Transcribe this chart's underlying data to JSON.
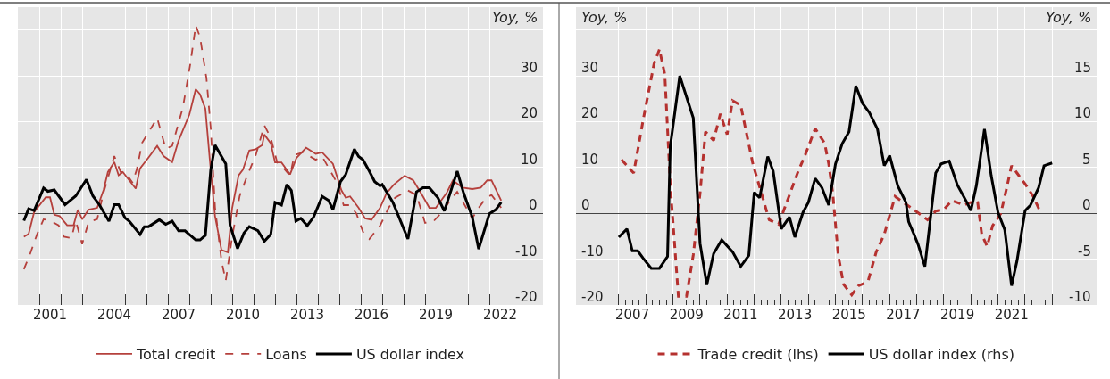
{
  "chart_data": [
    {
      "type": "line",
      "ylabel": "Yoy, %",
      "xlim": [
        2000,
        2024.5
      ],
      "ylim": [
        -20,
        45
      ],
      "xticks": [
        {
          "value": 2001,
          "label": null
        },
        {
          "value": 2002,
          "label": null
        },
        {
          "value": 2003,
          "label": null
        },
        {
          "value": 2004,
          "label": null
        },
        {
          "value": 2005,
          "label": null
        },
        {
          "value": 2006,
          "label": null
        },
        {
          "value": 2007,
          "label": null
        },
        {
          "value": 2008,
          "label": null
        },
        {
          "value": 2009,
          "label": null
        },
        {
          "value": 2010,
          "label": null
        },
        {
          "value": 2011,
          "label": null
        },
        {
          "value": 2012,
          "label": null
        },
        {
          "value": 2013,
          "label": null
        },
        {
          "value": 2014,
          "label": null
        },
        {
          "value": 2015,
          "label": null
        },
        {
          "value": 2016,
          "label": null
        },
        {
          "value": 2017,
          "label": null
        },
        {
          "value": 2018,
          "label": null
        },
        {
          "value": 2019,
          "label": null
        },
        {
          "value": 2020,
          "label": null
        },
        {
          "value": 2021,
          "label": null
        },
        {
          "value": 2022,
          "label": null
        },
        {
          "value": 2001.5,
          "label": "2001"
        },
        {
          "value": 2004.5,
          "label": "2004"
        },
        {
          "value": 2007.5,
          "label": "2007"
        },
        {
          "value": 2010.5,
          "label": "2010"
        },
        {
          "value": 2013.5,
          "label": "2013"
        },
        {
          "value": 2016.5,
          "label": "2016"
        },
        {
          "value": 2019.5,
          "label": "2019"
        },
        {
          "value": 2022.5,
          "label": "2022"
        }
      ],
      "yticks": [
        -20,
        -10,
        0,
        10,
        20,
        30,
        {
          "value": 40,
          "label": null
        }
      ],
      "grid": true,
      "legend": "bottom",
      "series": [
        {
          "name": "Total credit",
          "color": "#b5403c",
          "line_style": "solid",
          "x": [
            2000.28,
            2000.5,
            2000.76,
            2001.3,
            2001.5,
            2001.7,
            2001.95,
            2002.3,
            2002.6,
            2002.8,
            2003.0,
            2003.3,
            2003.7,
            2004.0,
            2004.2,
            2004.5,
            2004.7,
            2004.9,
            2005.5,
            2005.7,
            2006.1,
            2006.5,
            2006.8,
            2007.2,
            2007.5,
            2008.0,
            2008.3,
            2008.5,
            2008.75,
            2008.96,
            2009.2,
            2009.5,
            2009.8,
            2010.0,
            2010.3,
            2010.5,
            2010.8,
            2011.1,
            2011.4,
            2011.5,
            2011.8,
            2012.0,
            2012.3,
            2012.7,
            2013.0,
            2013.45,
            2013.9,
            2014.2,
            2014.7,
            2015.1,
            2015.3,
            2015.5,
            2015.9,
            2016.2,
            2016.5,
            2016.9,
            2017.2,
            2017.55,
            2018.05,
            2018.45,
            2018.9,
            2019.2,
            2019.5,
            2020.0,
            2020.3,
            2020.75,
            2021.2,
            2021.6,
            2021.9,
            2022.1,
            2022.55
          ],
          "values": [
            -5.1,
            -4.5,
            0.3,
            3.5,
            3.5,
            -0.3,
            -0.6,
            -2.6,
            -2.6,
            0.8,
            -1.3,
            0.8,
            1.2,
            5.1,
            9.0,
            11.2,
            8.3,
            9.0,
            5.4,
            9.8,
            12.2,
            14.7,
            12.5,
            11.2,
            15.9,
            21.5,
            27.1,
            26.0,
            22.8,
            11.5,
            -0.6,
            -8.0,
            -8.5,
            1.2,
            8.3,
            9.5,
            13.7,
            14.0,
            14.9,
            17.2,
            15.3,
            11.1,
            11.1,
            8.5,
            12.1,
            14.3,
            13.0,
            13.3,
            10.8,
            5.0,
            3.4,
            3.7,
            1.2,
            -1.1,
            -1.4,
            1.2,
            4.4,
            6.3,
            8.2,
            7.2,
            3.7,
            1.2,
            1.2,
            4.4,
            7.2,
            5.6,
            5.3,
            5.6,
            7.2,
            7.2,
            2.8
          ]
        },
        {
          "name": "Loans",
          "color": "#b5403c",
          "line_style": "dashed",
          "x": [
            2000.28,
            2000.56,
            2000.9,
            2001.2,
            2001.5,
            2001.9,
            2002.15,
            2002.5,
            2002.7,
            2003.0,
            2003.3,
            2003.7,
            2004.0,
            2004.5,
            2004.8,
            2005.0,
            2005.35,
            2005.55,
            2005.8,
            2006.5,
            2006.9,
            2007.2,
            2007.7,
            2008.05,
            2008.3,
            2008.5,
            2008.8,
            2009.0,
            2009.2,
            2009.5,
            2009.7,
            2010.0,
            2010.35,
            2010.7,
            2011.1,
            2011.5,
            2011.8,
            2012.1,
            2012.3,
            2012.7,
            2012.9,
            2013.3,
            2013.9,
            2014.2,
            2014.9,
            2015.2,
            2015.5,
            2015.8,
            2016.1,
            2016.4,
            2016.9,
            2017.3,
            2017.6,
            2018.2,
            2018.6,
            2019.0,
            2019.4,
            2019.85,
            2020.2,
            2020.5,
            2021.2,
            2021.5,
            2021.85,
            2022.1,
            2022.55
          ],
          "values": [
            -12.2,
            -9.0,
            -4.5,
            -1.3,
            -1.6,
            -2.6,
            -5.1,
            -5.4,
            -1.6,
            -6.7,
            -1.9,
            -1.3,
            4.5,
            12.5,
            9.0,
            9.0,
            6.7,
            9.6,
            15.4,
            20.8,
            14.1,
            14.7,
            23.1,
            32.7,
            41.0,
            38.5,
            29.5,
            18.6,
            1.3,
            -10.3,
            -14.7,
            -5.1,
            3.8,
            8.2,
            12.7,
            19.2,
            16.5,
            11.1,
            10.4,
            8.2,
            12.7,
            13.3,
            11.7,
            12.4,
            6.6,
            1.8,
            1.8,
            -0.1,
            -4.0,
            -5.6,
            -2.7,
            1.2,
            3.4,
            5.0,
            4.0,
            -2.1,
            -1.7,
            0.5,
            3.1,
            4.7,
            -1.1,
            1.2,
            3.4,
            4.0,
            1.2
          ]
        },
        {
          "name": "US dollar index",
          "color": "#000000",
          "line_style": "solid",
          "x": [
            2000.28,
            2000.5,
            2000.76,
            2001.2,
            2001.4,
            2001.7,
            2002.2,
            2002.7,
            2003.2,
            2003.5,
            2003.8,
            2004.25,
            2004.5,
            2004.7,
            2005.0,
            2005.2,
            2005.7,
            2005.9,
            2006.1,
            2006.6,
            2006.9,
            2007.2,
            2007.5,
            2007.8,
            2008.3,
            2008.5,
            2008.75,
            2009.0,
            2009.2,
            2009.7,
            2009.9,
            2010.25,
            2010.55,
            2010.8,
            2011.2,
            2011.5,
            2011.8,
            2012.0,
            2012.3,
            2012.55,
            2012.76,
            2012.97,
            2013.2,
            2013.5,
            2013.8,
            2014.2,
            2014.5,
            2014.7,
            2015.05,
            2015.3,
            2015.7,
            2015.9,
            2016.1,
            2016.4,
            2016.65,
            2016.9,
            2017.0,
            2017.5,
            2018.2,
            2018.6,
            2018.9,
            2019.2,
            2019.6,
            2019.9,
            2020.5,
            2020.8,
            2021.2,
            2021.5,
            2022.0,
            2022.3,
            2022.55
          ],
          "values": [
            -1.6,
            1.0,
            0.6,
            5.5,
            4.8,
            5.1,
            1.9,
            3.8,
            7.4,
            3.8,
            1.9,
            -1.7,
            1.9,
            1.9,
            -1.0,
            -1.7,
            -4.6,
            -2.9,
            -2.9,
            -1.4,
            -2.4,
            -1.7,
            -3.8,
            -3.8,
            -5.8,
            -5.8,
            -4.8,
            9.5,
            14.9,
            10.8,
            -2.6,
            -7.7,
            -4.3,
            -2.9,
            -3.8,
            -6.1,
            -4.6,
            2.4,
            1.8,
            6.3,
            5.0,
            -1.7,
            -1.1,
            -2.7,
            -0.8,
            3.7,
            2.8,
            0.8,
            6.9,
            8.5,
            14.0,
            12.4,
            11.7,
            9.2,
            6.9,
            6.0,
            6.3,
            2.4,
            -5.6,
            4.7,
            5.6,
            5.6,
            3.4,
            0.5,
            9.2,
            4.4,
            -0.8,
            -7.8,
            -0.1,
            0.8,
            2.4
          ]
        }
      ]
    },
    {
      "type": "line",
      "ylabel": "Yoy, %",
      "y2label": "Yoy, %",
      "xlim": [
        2005.42,
        2024.64
      ],
      "ylim": [
        -20,
        45
      ],
      "y2lim": [
        -10,
        22.5
      ],
      "xticks": [
        {
          "value": 2007,
          "label": null
        },
        {
          "value": 2007.25,
          "label": null
        },
        {
          "value": 2007.5,
          "label": null
        },
        {
          "value": 2007.75,
          "label": null
        },
        {
          "value": 2008,
          "label": null
        },
        {
          "value": 2008.25,
          "label": null
        },
        {
          "value": 2008.5,
          "label": null
        },
        {
          "value": 2008.75,
          "label": null
        },
        {
          "value": 2009,
          "label": null
        },
        {
          "value": 2009.25,
          "label": null
        },
        {
          "value": 2009.5,
          "label": null
        },
        {
          "value": 2009.75,
          "label": null
        },
        {
          "value": 2010,
          "label": null
        },
        {
          "value": 2010.25,
          "label": null
        },
        {
          "value": 2010.5,
          "label": null
        },
        {
          "value": 2010.75,
          "label": null
        },
        {
          "value": 2011,
          "label": null
        },
        {
          "value": 2011.25,
          "label": null
        },
        {
          "value": 2011.5,
          "label": null
        },
        {
          "value": 2011.75,
          "label": null
        },
        {
          "value": 2012,
          "label": null
        },
        {
          "value": 2012.25,
          "label": null
        },
        {
          "value": 2012.5,
          "label": null
        },
        {
          "value": 2012.75,
          "label": null
        },
        {
          "value": 2013,
          "label": null
        },
        {
          "value": 2013.25,
          "label": null
        },
        {
          "value": 2013.5,
          "label": null
        },
        {
          "value": 2013.75,
          "label": null
        },
        {
          "value": 2014,
          "label": null
        },
        {
          "value": 2014.25,
          "label": null
        },
        {
          "value": 2014.5,
          "label": null
        },
        {
          "value": 2014.75,
          "label": null
        },
        {
          "value": 2015,
          "label": null
        },
        {
          "value": 2015.25,
          "label": null
        },
        {
          "value": 2015.5,
          "label": null
        },
        {
          "value": 2015.75,
          "label": null
        },
        {
          "value": 2016,
          "label": null
        },
        {
          "value": 2016.25,
          "label": null
        },
        {
          "value": 2016.5,
          "label": null
        },
        {
          "value": 2016.75,
          "label": null
        },
        {
          "value": 2017,
          "label": null
        },
        {
          "value": 2017.25,
          "label": null
        },
        {
          "value": 2017.5,
          "label": null
        },
        {
          "value": 2017.75,
          "label": null
        },
        {
          "value": 2018,
          "label": null
        },
        {
          "value": 2018.25,
          "label": null
        },
        {
          "value": 2018.5,
          "label": null
        },
        {
          "value": 2018.75,
          "label": null
        },
        {
          "value": 2019,
          "label": null
        },
        {
          "value": 2019.25,
          "label": null
        },
        {
          "value": 2019.5,
          "label": null
        },
        {
          "value": 2019.75,
          "label": null
        },
        {
          "value": 2020,
          "label": null
        },
        {
          "value": 2020.25,
          "label": null
        },
        {
          "value": 2020.5,
          "label": null
        },
        {
          "value": 2020.75,
          "label": null
        },
        {
          "value": 2021,
          "label": null
        },
        {
          "value": 2021.25,
          "label": null
        },
        {
          "value": 2021.5,
          "label": null
        },
        {
          "value": 2021.75,
          "label": null
        },
        {
          "value": 2022,
          "label": null
        },
        {
          "value": 2022.25,
          "label": null
        },
        {
          "value": 2022.5,
          "label": null
        },
        {
          "value": 2022.75,
          "label": null
        },
        {
          "value": 2023,
          "label": null
        },
        {
          "value": 2007.5,
          "label": "2007"
        },
        {
          "value": 2009.5,
          "label": "2009"
        },
        {
          "value": 2011.5,
          "label": "2011"
        },
        {
          "value": 2013.5,
          "label": "2013"
        },
        {
          "value": 2015.5,
          "label": "2015"
        },
        {
          "value": 2017.5,
          "label": "2017"
        },
        {
          "value": 2019.5,
          "label": "2019"
        },
        {
          "value": 2021.5,
          "label": "2021"
        }
      ],
      "yticks": [
        -20,
        -10,
        0,
        10,
        20,
        30,
        {
          "value": 40,
          "label": null
        }
      ],
      "y2ticks": [
        -10,
        -5,
        0,
        5,
        10,
        15
      ],
      "grid": true,
      "legend": "bottom",
      "series": [
        {
          "name": "Trade credit (lhs)",
          "color": "#b5312f",
          "line_style": "dashed",
          "x": [
            2007.1,
            2007.55,
            2007.9,
            2008.3,
            2008.5,
            2008.7,
            2008.9,
            2009.2,
            2009.5,
            2009.75,
            2010.0,
            2010.2,
            2010.5,
            2010.75,
            2011.0,
            2011.2,
            2011.5,
            2011.95,
            2012.3,
            2012.55,
            2012.9,
            2013.2,
            2013.6,
            2013.9,
            2014.25,
            2014.6,
            2014.75,
            2014.9,
            2015.1,
            2015.3,
            2015.6,
            2015.85,
            2016.2,
            2016.5,
            2016.8,
            2017.2,
            2017.5,
            2017.8,
            2018.1,
            2018.4,
            2018.7,
            2019.0,
            2019.3,
            2019.75,
            2020.0,
            2020.25,
            2020.4,
            2020.6,
            2020.8,
            2021.1,
            2021.3,
            2021.5,
            2021.7,
            2022.05,
            2022.3,
            2022.55
          ],
          "values": [
            11.7,
            8.8,
            20.4,
            32.6,
            35.8,
            30.3,
            6.3,
            -18.1,
            -18.1,
            -9.1,
            4.4,
            17.8,
            15.9,
            21.7,
            17.2,
            24.6,
            23.6,
            10.8,
            3.7,
            -1.4,
            -2.4,
            2.4,
            8.8,
            13.0,
            18.5,
            15.3,
            10.8,
            4.4,
            -9.1,
            -15.5,
            -17.8,
            -15.8,
            -14.9,
            -8.5,
            -4.6,
            3.7,
            2.4,
            1.2,
            -0.1,
            -1.4,
            0.5,
            0.8,
            2.8,
            1.8,
            2.4,
            2.4,
            -4.6,
            -7.2,
            -2.7,
            -0.1,
            5.0,
            10.4,
            8.8,
            6.0,
            3.7,
            0.5
          ]
        },
        {
          "name": "US dollar index (rhs)",
          "color": "#000000",
          "line_style": "solid",
          "axis": "y2",
          "x": [
            2007.0,
            2007.3,
            2007.5,
            2007.7,
            2007.9,
            2008.2,
            2008.5,
            2008.8,
            2008.9,
            2009.25,
            2009.75,
            2010.0,
            2010.25,
            2010.5,
            2010.8,
            2011.2,
            2011.5,
            2011.8,
            2012.0,
            2012.2,
            2012.5,
            2012.7,
            2013.0,
            2013.3,
            2013.5,
            2013.8,
            2014.0,
            2014.25,
            2014.5,
            2014.75,
            2015.0,
            2015.25,
            2015.5,
            2015.75,
            2016.0,
            2016.25,
            2016.55,
            2016.8,
            2017.0,
            2017.3,
            2017.6,
            2017.7,
            2017.9,
            2018.05,
            2018.3,
            2018.7,
            2018.9,
            2019.2,
            2019.5,
            2019.85,
            2020.0,
            2020.2,
            2020.5,
            2020.75,
            2021.0,
            2021.25,
            2021.5,
            2021.7,
            2022.0,
            2022.2,
            2022.5,
            2022.7,
            2023.0
          ],
          "values": [
            -2.6,
            -1.7,
            -4.1,
            -4.1,
            -4.9,
            -6.0,
            -6.0,
            -4.7,
            7.3,
            15.0,
            10.4,
            -3.3,
            -7.8,
            -4.4,
            -2.9,
            -4.2,
            -5.8,
            -4.6,
            2.3,
            1.7,
            6.2,
            4.6,
            -1.7,
            -0.4,
            -2.6,
            0.1,
            1.2,
            3.8,
            2.8,
            0.9,
            5.4,
            7.6,
            8.9,
            13.9,
            12.0,
            11.0,
            9.2,
            5.2,
            6.3,
            3.0,
            1.2,
            -0.9,
            -2.3,
            -3.4,
            -5.8,
            4.4,
            5.4,
            5.7,
            3.1,
            1.2,
            0.3,
            3.0,
            9.2,
            4.1,
            0.1,
            -1.8,
            -7.9,
            -5.2,
            0.3,
            0.9,
            2.8,
            5.2,
            5.5
          ]
        }
      ]
    }
  ]
}
